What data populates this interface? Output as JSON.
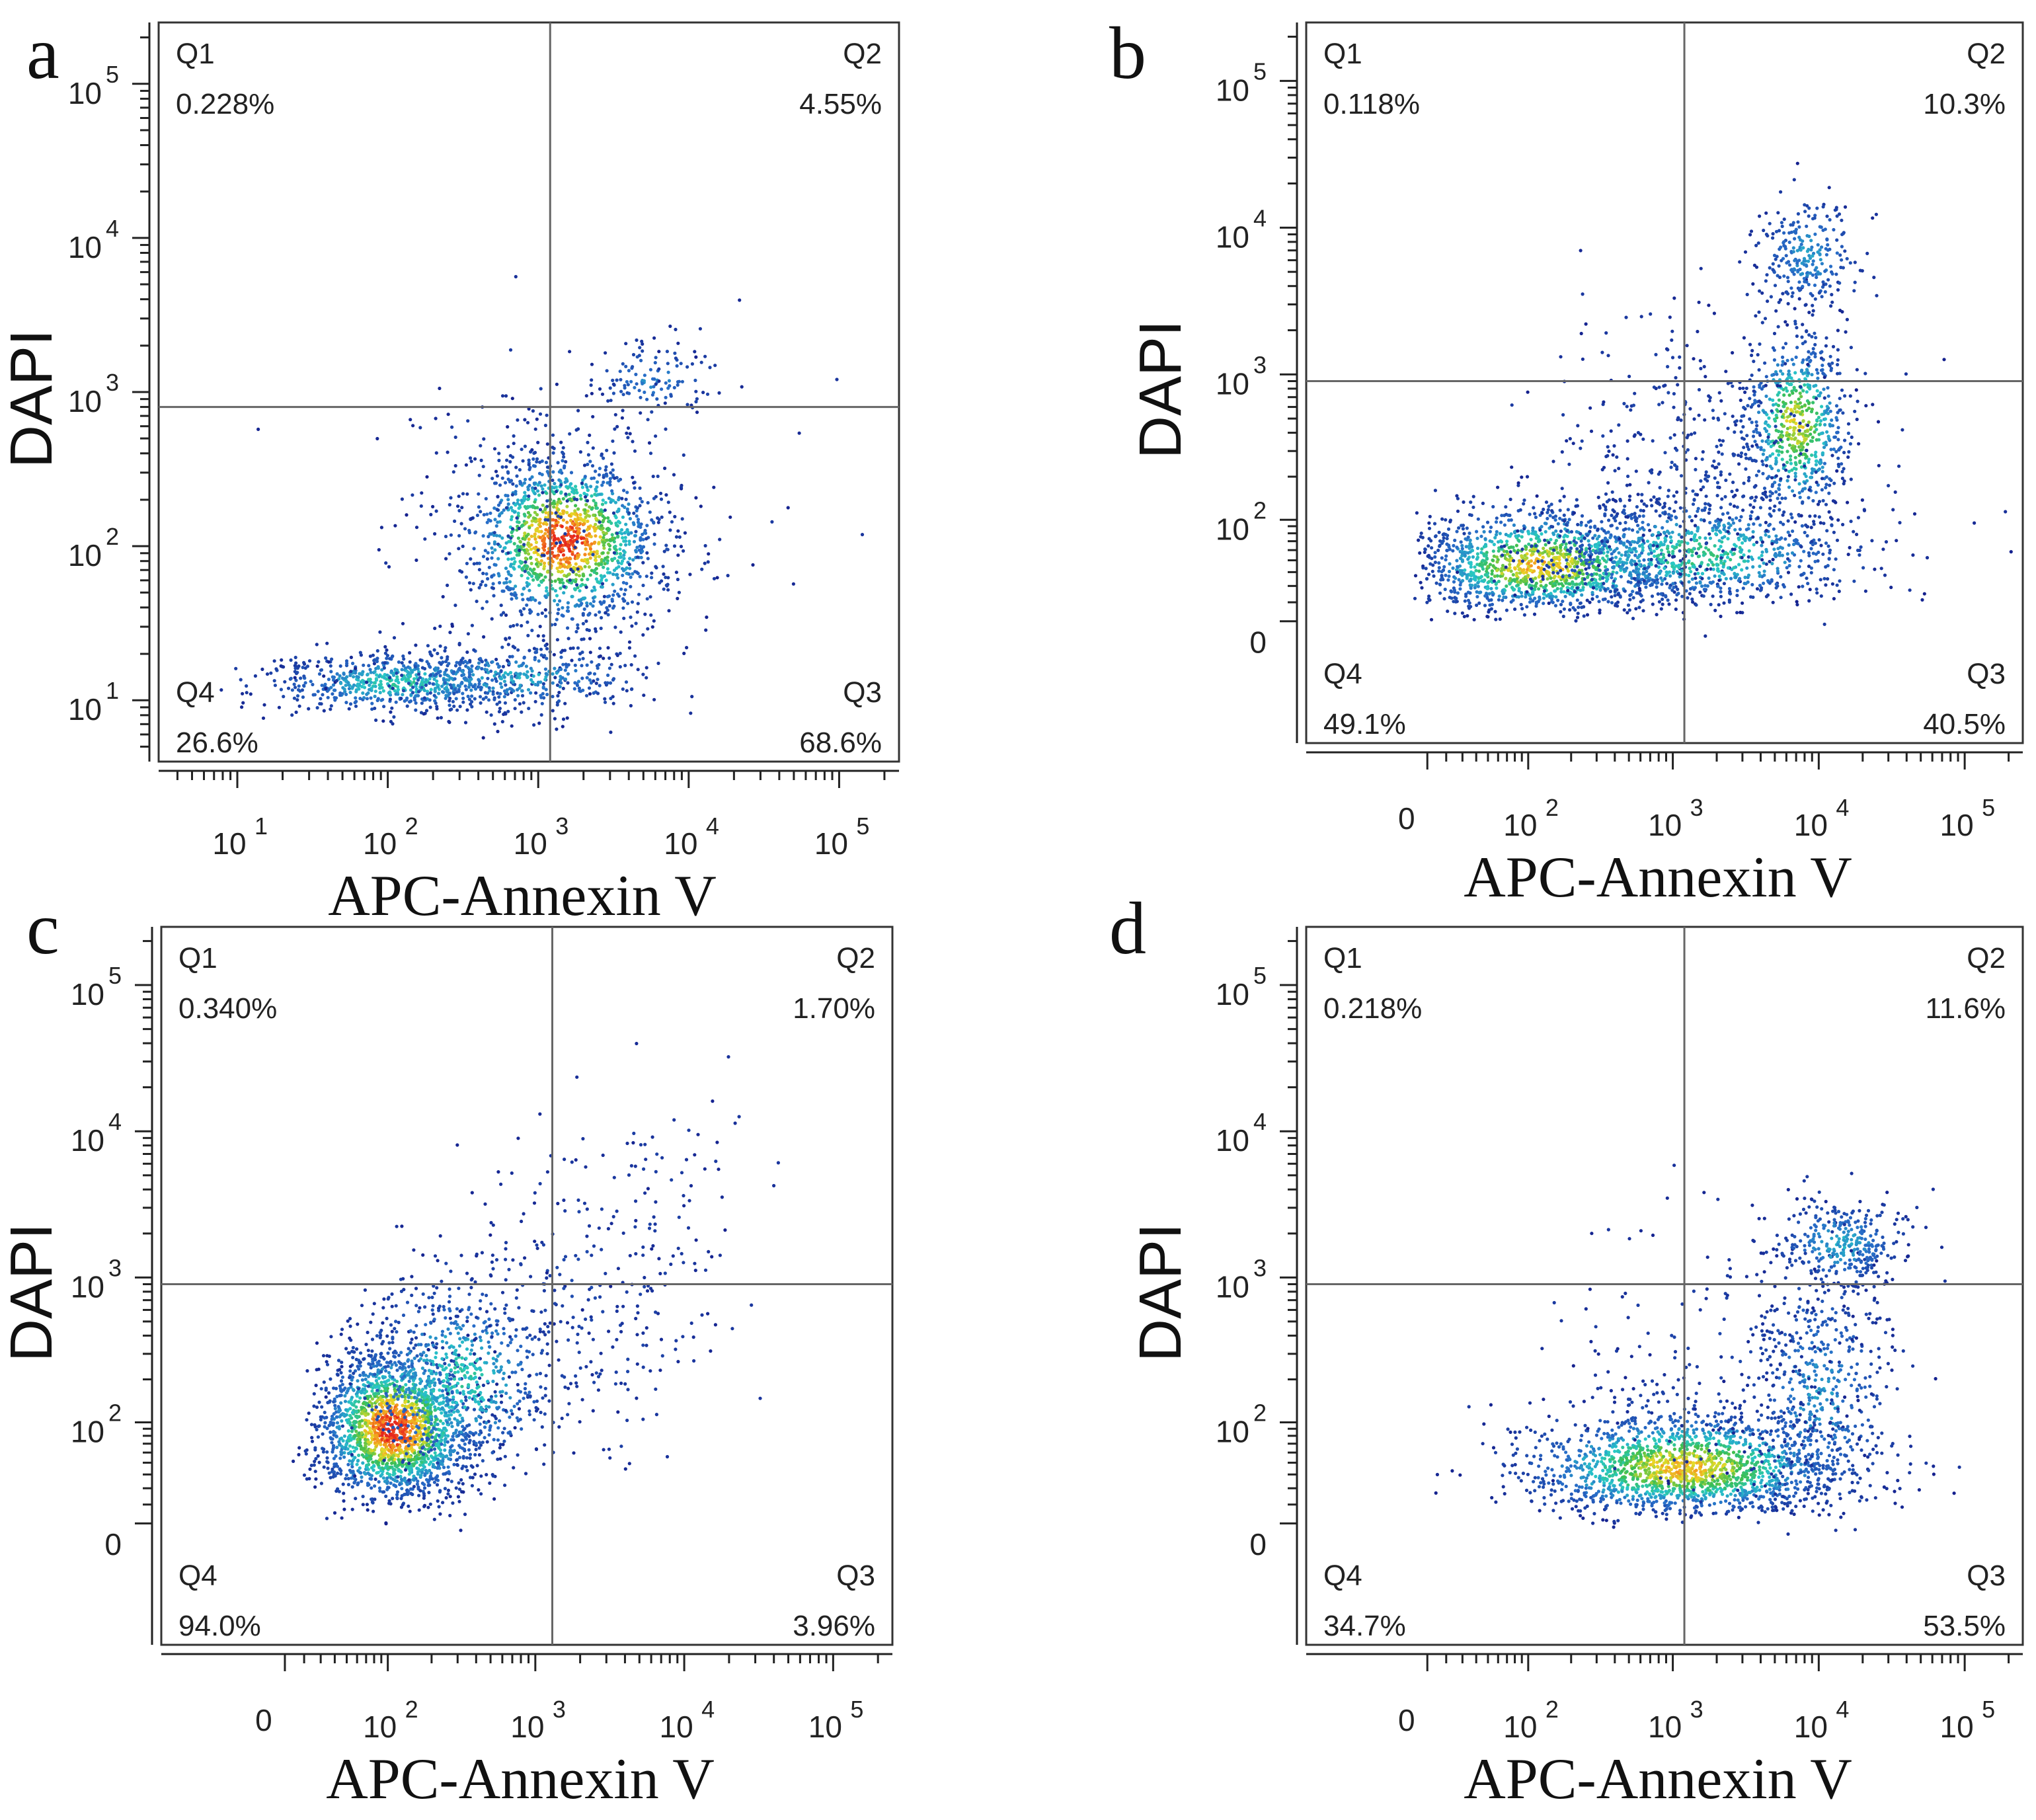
{
  "panels": [
    {
      "id": "a",
      "letter": "a",
      "xlabel": "APC-Annexin V",
      "ylabel": "DAPI",
      "x_scale": "log",
      "y_scale": "log",
      "x_ticks": [
        {
          "v": 10,
          "e": "1"
        },
        {
          "v": 100,
          "e": "2"
        },
        {
          "v": 1000,
          "e": "3"
        },
        {
          "v": 10000,
          "e": "4"
        },
        {
          "v": 100000,
          "e": "5"
        }
      ],
      "y_ticks": [
        {
          "v": 10,
          "e": "1"
        },
        {
          "v": 100,
          "e": "2"
        },
        {
          "v": 1000,
          "e": "3"
        },
        {
          "v": 10000,
          "e": "4"
        },
        {
          "v": 100000,
          "e": "5"
        }
      ],
      "xlim": [
        3,
        250000
      ],
      "ylim": [
        4,
        250000
      ],
      "gate": {
        "x": 1200,
        "y": 800
      },
      "quadrants": {
        "Q1": {
          "label": "Q1",
          "value": "0.228%"
        },
        "Q2": {
          "label": "Q2",
          "value": "4.55%"
        },
        "Q3": {
          "label": "Q3",
          "value": "68.6%"
        },
        "Q4": {
          "label": "Q4",
          "value": "26.6%"
        }
      },
      "clusters": [
        {
          "x": 1500,
          "y": 110,
          "sx": 0.32,
          "sy": 0.28,
          "n": 1400,
          "peak": 1.0
        },
        {
          "x": 120,
          "y": 13,
          "sx": 0.45,
          "sy": 0.1,
          "n": 650,
          "peak": 0.55
        },
        {
          "x": 700,
          "y": 14,
          "sx": 0.45,
          "sy": 0.12,
          "n": 380,
          "peak": 0.45
        },
        {
          "x": 5800,
          "y": 1200,
          "sx": 0.2,
          "sy": 0.12,
          "n": 110,
          "peak": 0.35
        },
        {
          "x": 1500,
          "y": 150,
          "sx": 0.6,
          "sy": 0.55,
          "n": 250,
          "peak": 0.1
        }
      ]
    },
    {
      "id": "b",
      "letter": "b",
      "xlabel": "APC-Annexin V",
      "ylabel": "DAPI",
      "x_scale": "biex",
      "y_scale": "biex",
      "x_ticks": [
        {
          "v": 0,
          "e": ""
        },
        {
          "v": 100,
          "e": "2"
        },
        {
          "v": 1000,
          "e": "3"
        },
        {
          "v": 10000,
          "e": "4"
        },
        {
          "v": 100000,
          "e": "5"
        }
      ],
      "y_ticks": [
        {
          "v": 0,
          "e": ""
        },
        {
          "v": 100,
          "e": "2"
        },
        {
          "v": 1000,
          "e": "3"
        },
        {
          "v": 10000,
          "e": "4"
        },
        {
          "v": 100000,
          "e": "5"
        }
      ],
      "xlim": [
        -70,
        250000
      ],
      "ylim": [
        -70,
        250000
      ],
      "gate": {
        "x": 1200,
        "y": 900
      },
      "quadrants": {
        "Q1": {
          "label": "Q1",
          "value": "0.118%"
        },
        "Q2": {
          "label": "Q2",
          "value": "10.3%"
        },
        "Q3": {
          "label": "Q3",
          "value": "40.5%"
        },
        "Q4": {
          "label": "Q4",
          "value": "49.1%"
        }
      },
      "clusters": [
        {
          "x": 120,
          "y": 45,
          "sx": 0.5,
          "sy": 0.22,
          "n": 1300,
          "peak": 0.85
        },
        {
          "x": 1500,
          "y": 55,
          "sx": 0.55,
          "sy": 0.22,
          "n": 900,
          "peak": 0.6
        },
        {
          "x": 7000,
          "y": 450,
          "sx": 0.18,
          "sy": 0.32,
          "n": 650,
          "peak": 0.8
        },
        {
          "x": 8500,
          "y": 6500,
          "sx": 0.18,
          "sy": 0.2,
          "n": 260,
          "peak": 0.4
        },
        {
          "x": 1500,
          "y": 250,
          "sx": 0.55,
          "sy": 0.5,
          "n": 400,
          "peak": 0.1
        }
      ]
    },
    {
      "id": "c",
      "letter": "c",
      "xlabel": "APC-Annexin V",
      "ylabel": "DAPI",
      "x_scale": "biex",
      "y_scale": "biex",
      "x_ticks": [
        {
          "v": 0,
          "e": ""
        },
        {
          "v": 100,
          "e": "2"
        },
        {
          "v": 1000,
          "e": "3"
        },
        {
          "v": 10000,
          "e": "4"
        },
        {
          "v": 100000,
          "e": "5"
        }
      ],
      "y_ticks": [
        {
          "v": 0,
          "e": ""
        },
        {
          "v": 100,
          "e": "2"
        },
        {
          "v": 1000,
          "e": "3"
        },
        {
          "v": 10000,
          "e": "4"
        },
        {
          "v": 100000,
          "e": "5"
        }
      ],
      "xlim": [
        -70,
        250000
      ],
      "ylim": [
        -70,
        250000
      ],
      "gate": {
        "x": 1300,
        "y": 900
      },
      "quadrants": {
        "Q1": {
          "label": "Q1",
          "value": "0.340%"
        },
        "Q2": {
          "label": "Q2",
          "value": "1.70%"
        },
        "Q3": {
          "label": "Q3",
          "value": "3.96%"
        },
        "Q4": {
          "label": "Q4",
          "value": "94.0%"
        }
      },
      "clusters": [
        {
          "x": 110,
          "y": 90,
          "sx": 0.28,
          "sy": 0.28,
          "n": 1900,
          "peak": 1.0
        },
        {
          "x": 300,
          "y": 200,
          "sx": 0.35,
          "sy": 0.35,
          "n": 700,
          "peak": 0.55
        },
        {
          "x": 2000,
          "y": 600,
          "sx": 0.5,
          "sy": 0.55,
          "n": 260,
          "peak": 0.1
        },
        {
          "x": 6000,
          "y": 4000,
          "sx": 0.35,
          "sy": 0.4,
          "n": 60,
          "peak": 0.05
        }
      ]
    },
    {
      "id": "d",
      "letter": "d",
      "xlabel": "APC-Annexin V",
      "ylabel": "DAPI",
      "x_scale": "biex",
      "y_scale": "biex",
      "x_ticks": [
        {
          "v": 0,
          "e": ""
        },
        {
          "v": 100,
          "e": "2"
        },
        {
          "v": 1000,
          "e": "3"
        },
        {
          "v": 10000,
          "e": "4"
        },
        {
          "v": 100000,
          "e": "5"
        }
      ],
      "y_ticks": [
        {
          "v": 0,
          "e": ""
        },
        {
          "v": 100,
          "e": "2"
        },
        {
          "v": 1000,
          "e": "3"
        },
        {
          "v": 10000,
          "e": "4"
        },
        {
          "v": 100000,
          "e": "5"
        }
      ],
      "xlim": [
        -70,
        250000
      ],
      "ylim": [
        -70,
        250000
      ],
      "gate": {
        "x": 1200,
        "y": 900
      },
      "quadrants": {
        "Q1": {
          "label": "Q1",
          "value": "0.218%"
        },
        "Q2": {
          "label": "Q2",
          "value": "11.6%"
        },
        "Q3": {
          "label": "Q3",
          "value": "53.5%"
        },
        "Q4": {
          "label": "Q4",
          "value": "34.7%"
        }
      },
      "clusters": [
        {
          "x": 1200,
          "y": 45,
          "sx": 0.55,
          "sy": 0.22,
          "n": 1700,
          "peak": 0.85
        },
        {
          "x": 10000,
          "y": 150,
          "sx": 0.25,
          "sy": 0.45,
          "n": 500,
          "peak": 0.4
        },
        {
          "x": 14000,
          "y": 1700,
          "sx": 0.22,
          "sy": 0.15,
          "n": 330,
          "peak": 0.45
        },
        {
          "x": 3000,
          "y": 300,
          "sx": 0.55,
          "sy": 0.5,
          "n": 220,
          "peak": 0.08
        }
      ]
    }
  ]
}
